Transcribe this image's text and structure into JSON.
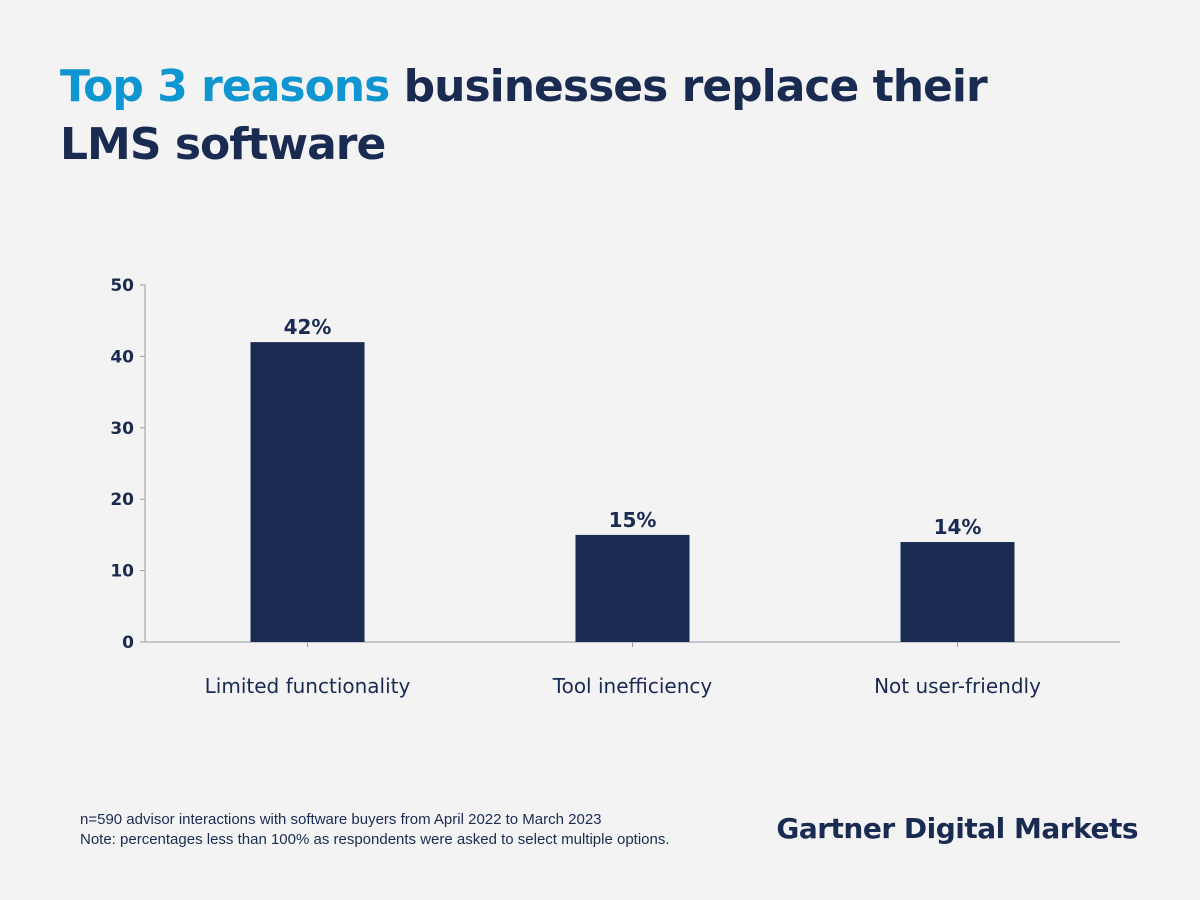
{
  "header": {
    "title_accent": "Top 3 reasons",
    "title_rest": " businesses replace their LMS software"
  },
  "chart_data": {
    "type": "bar",
    "title": "Top 3 reasons businesses replace their LMS software",
    "categories": [
      "Limited functionality",
      "Tool inefficiency",
      "Not user-friendly"
    ],
    "values": [
      42,
      15,
      14
    ],
    "data_labels": [
      "42%",
      "15%",
      "14%"
    ],
    "ylim": [
      0,
      50
    ],
    "yticks": [
      0,
      10,
      20,
      30,
      40,
      50
    ],
    "xlabel": "",
    "ylabel": "",
    "grid": false,
    "bar_color": "#1a2b52"
  },
  "footnote": {
    "line1": "n=590 advisor interactions with software buyers from April 2022 to March 2023",
    "line2": "Note: percentages less than 100% as respondents were asked to select multiple options."
  },
  "brand": {
    "text": "Gartner Digital Markets"
  },
  "colors": {
    "accent": "#0f95cf",
    "navy": "#1a2b52",
    "background": "#f3f3f4"
  }
}
